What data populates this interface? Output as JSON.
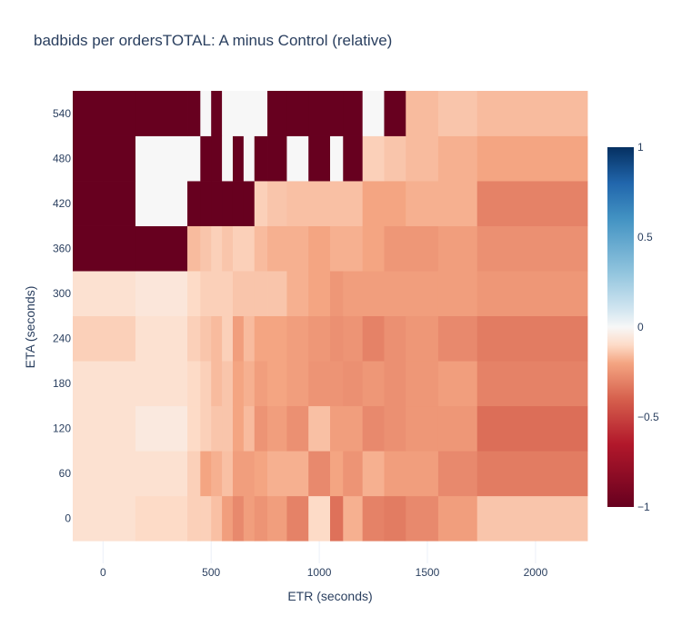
{
  "chart_data": {
    "type": "heatmap",
    "title": "badbids per ordersTOTAL: A minus Control (relative)",
    "xlabel": "ETR (seconds)",
    "ylabel": "ETA (seconds)",
    "xlim": [
      -140,
      2240
    ],
    "ylim": [
      -60,
      570
    ],
    "x_ticks": [
      0,
      500,
      1000,
      1500,
      2000
    ],
    "y_ticks": [
      0,
      60,
      120,
      180,
      240,
      300,
      360,
      420,
      480,
      540
    ],
    "colorscale": "RdBu",
    "zmin": -1,
    "zmax": 1,
    "colorbar_ticks": [
      1,
      0.5,
      0,
      -0.5,
      -1
    ],
    "colorbar_tick_labels": [
      "1",
      "0.5",
      "0",
      "−0.5",
      "−1"
    ],
    "grid": true,
    "x_edges": [
      -140,
      150,
      390,
      450,
      500,
      550,
      600,
      650,
      700,
      760,
      850,
      950,
      1050,
      1110,
      1200,
      1300,
      1400,
      1550,
      1730,
      2240
    ],
    "y_edges": [
      -30,
      30,
      90,
      150,
      210,
      270,
      330,
      390,
      450,
      510,
      570
    ],
    "z": [
      [
        -0.08,
        -0.1,
        -0.12,
        -0.12,
        -0.15,
        -0.22,
        -0.28,
        -0.22,
        -0.25,
        -0.22,
        -0.3,
        -0.1,
        -0.35,
        -0.18,
        -0.3,
        -0.32,
        -0.28,
        -0.22,
        -0.14
      ],
      [
        -0.08,
        -0.08,
        -0.12,
        -0.2,
        -0.18,
        -0.15,
        -0.22,
        -0.22,
        -0.2,
        -0.18,
        -0.18,
        -0.28,
        -0.2,
        -0.25,
        -0.18,
        -0.22,
        -0.22,
        -0.28,
        -0.32
      ],
      [
        -0.08,
        -0.05,
        -0.1,
        -0.12,
        -0.14,
        -0.14,
        -0.2,
        -0.16,
        -0.25,
        -0.22,
        -0.26,
        -0.15,
        -0.22,
        -0.22,
        -0.28,
        -0.26,
        -0.24,
        -0.24,
        -0.36
      ],
      [
        -0.08,
        -0.08,
        -0.1,
        -0.12,
        -0.16,
        -0.14,
        -0.2,
        -0.18,
        -0.22,
        -0.2,
        -0.22,
        -0.25,
        -0.25,
        -0.26,
        -0.24,
        -0.26,
        -0.24,
        -0.22,
        -0.3
      ],
      [
        -0.12,
        -0.08,
        -0.12,
        -0.14,
        -0.16,
        -0.12,
        -0.22,
        -0.16,
        -0.2,
        -0.2,
        -0.22,
        -0.24,
        -0.26,
        -0.25,
        -0.3,
        -0.26,
        -0.24,
        -0.28,
        -0.32
      ],
      [
        -0.08,
        -0.06,
        -0.1,
        -0.12,
        -0.12,
        -0.12,
        -0.14,
        -0.14,
        -0.14,
        -0.14,
        -0.18,
        -0.2,
        -0.24,
        -0.22,
        -0.22,
        -0.22,
        -0.22,
        -0.22,
        -0.24
      ],
      [
        -1,
        -1,
        -0.16,
        -0.14,
        -0.12,
        -0.14,
        -0.12,
        -0.12,
        -0.16,
        -0.18,
        -0.18,
        -0.2,
        -0.18,
        -0.18,
        -0.2,
        -0.24,
        -0.24,
        -0.22,
        -0.26
      ],
      [
        -1,
        0,
        -1,
        -1,
        -1,
        -1,
        -1,
        -1,
        -0.12,
        -0.14,
        -0.15,
        -0.15,
        -0.15,
        -0.15,
        -0.2,
        -0.2,
        -0.18,
        -0.18,
        -0.3
      ],
      [
        -1,
        0,
        0,
        -1,
        -1,
        0,
        -1,
        0,
        -1,
        -1,
        0,
        -1,
        0,
        -1,
        -0.12,
        -0.14,
        -0.16,
        -0.18,
        -0.2
      ],
      [
        -1,
        -1,
        -1,
        0,
        -1,
        0,
        0,
        0,
        0,
        -1,
        -1,
        -1,
        -1,
        -1,
        0,
        -1,
        -0.16,
        -0.14,
        -0.16
      ]
    ]
  }
}
